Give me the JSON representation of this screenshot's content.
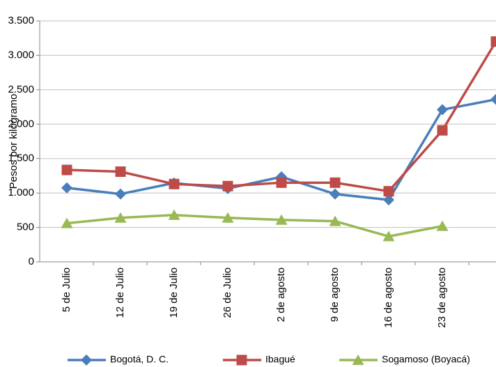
{
  "chart_data": {
    "type": "line",
    "y_label": "Pesos por kilogramo",
    "categories": [
      "5 de Julio",
      "12 de Julio",
      "19 de Julio",
      "26 de Julio",
      "2 de agosto",
      "9 de agosto",
      "16 de agosto",
      "23 de agosto",
      null
    ],
    "series": [
      {
        "name": "Bogotá, D. C.",
        "color": "#4a7ebb",
        "marker": "diamond",
        "values": [
          1075,
          985,
          1145,
          1065,
          1235,
          985,
          900,
          2210,
          2360
        ]
      },
      {
        "name": "Ibagué",
        "color": "#be4b48",
        "marker": "square",
        "values": [
          1335,
          1310,
          1130,
          1100,
          1150,
          1150,
          1025,
          1910,
          3200
        ]
      },
      {
        "name": "Sogamoso (Boyacá)",
        "color": "#98b954",
        "marker": "triangle",
        "values": [
          560,
          640,
          680,
          640,
          610,
          590,
          370,
          520,
          null
        ]
      }
    ],
    "ylim": [
      0,
      3500
    ],
    "yticks": [
      0,
      500,
      {
        "value": 1000,
        "label": "1.000"
      },
      {
        "value": 1500,
        "label": "1.500"
      },
      {
        "value": 2000,
        "label": "2.000"
      },
      {
        "value": 2500,
        "label": "2.500"
      },
      {
        "value": 3000,
        "label": "3.000"
      },
      {
        "value": 3500,
        "label": "3.500"
      }
    ],
    "grid": true,
    "legend": "bottom"
  }
}
